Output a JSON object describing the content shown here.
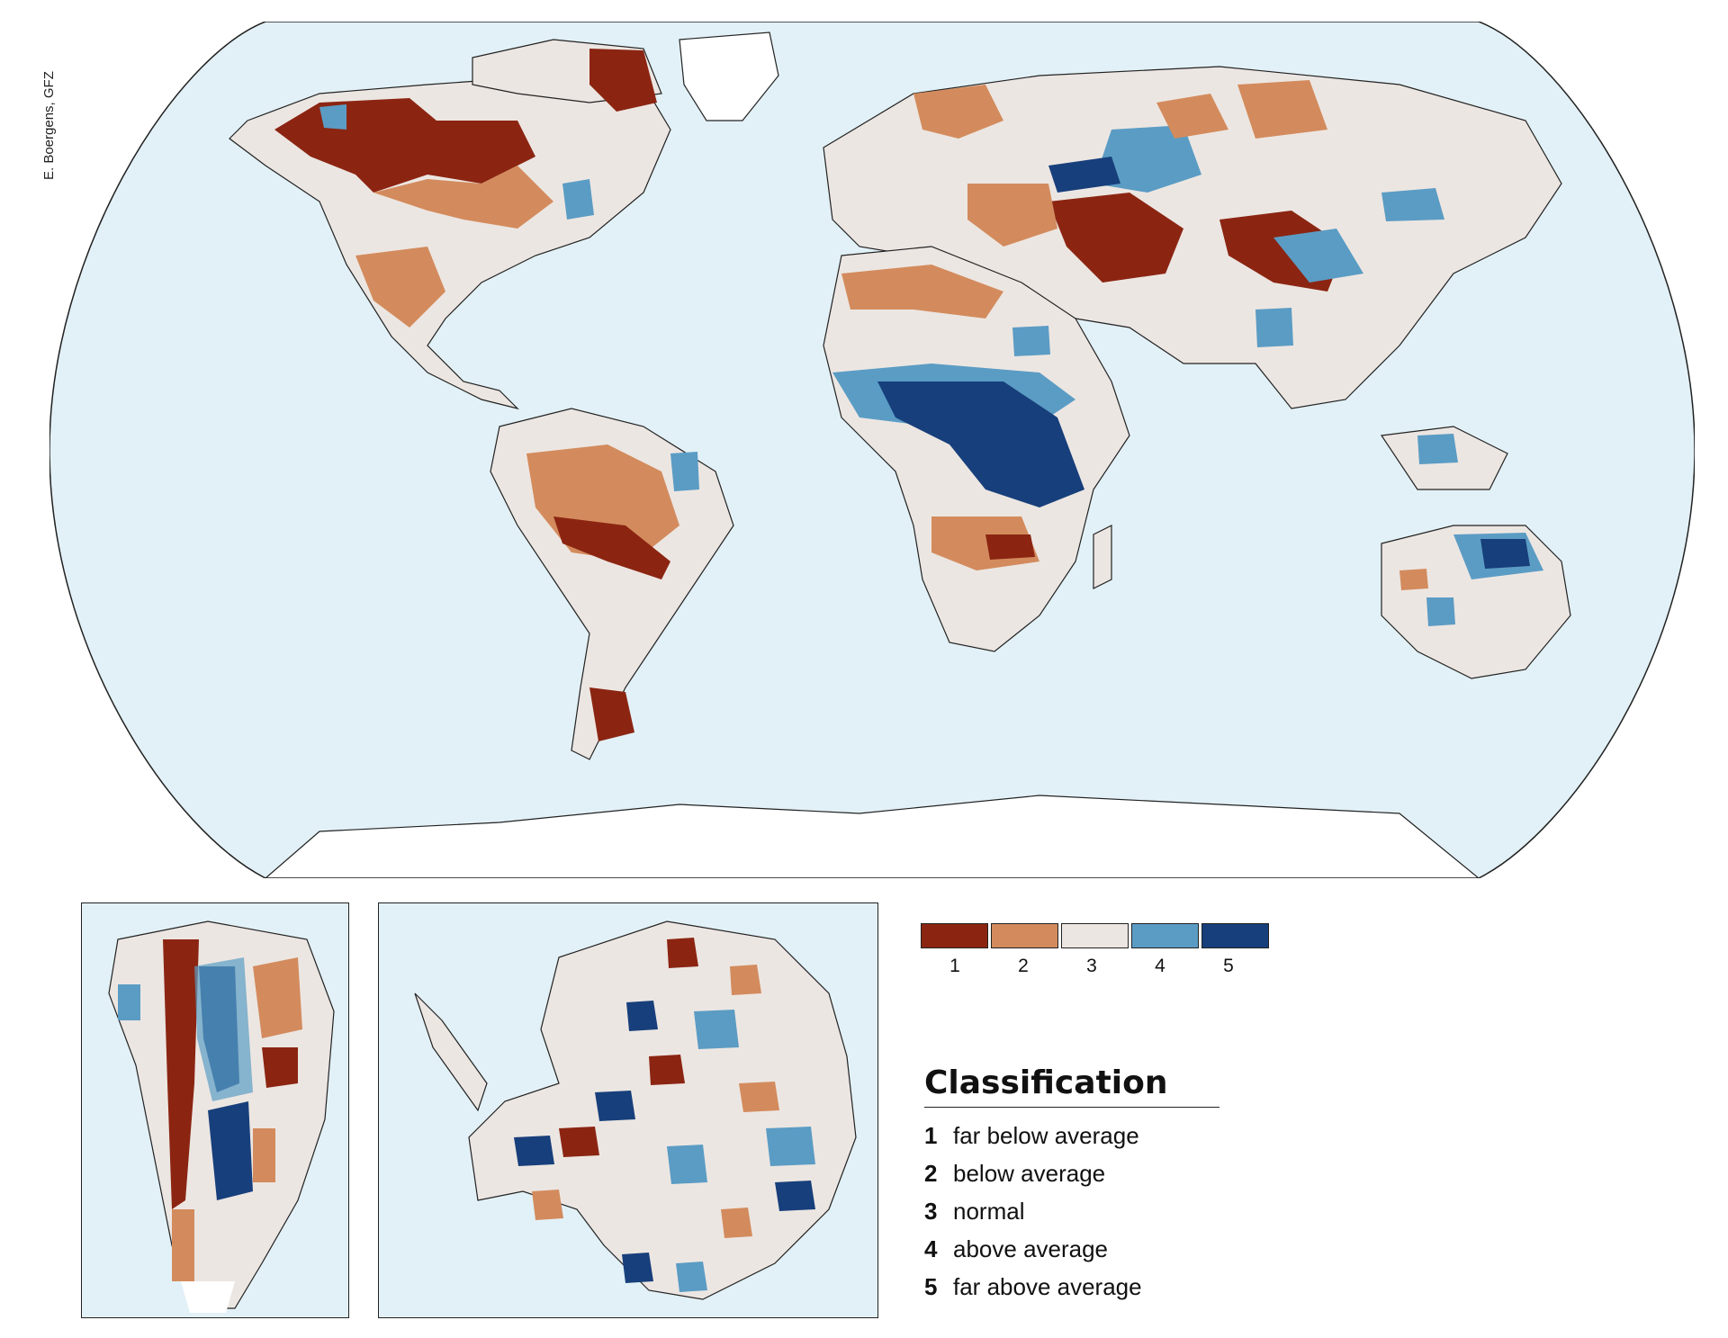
{
  "credit": "E. Boergens, GFZ",
  "colors": {
    "ocean": "#e2f1f7",
    "ice": "#ffffff",
    "outline": "#222222",
    "class_1": "#8b2512",
    "class_2": "#d38b5d",
    "class_3": "#ece6e2",
    "class_4": "#5b9cc4",
    "class_5": "#173f7b"
  },
  "legend": {
    "title": "Classification",
    "classes": [
      {
        "number": "1",
        "label": "far below average"
      },
      {
        "number": "2",
        "label": "below average"
      },
      {
        "number": "3",
        "label": "normal"
      },
      {
        "number": "4",
        "label": "above average"
      },
      {
        "number": "5",
        "label": "far above average"
      }
    ]
  },
  "colorbar": {
    "ticks": [
      "1",
      "2",
      "3",
      "4",
      "5"
    ]
  }
}
